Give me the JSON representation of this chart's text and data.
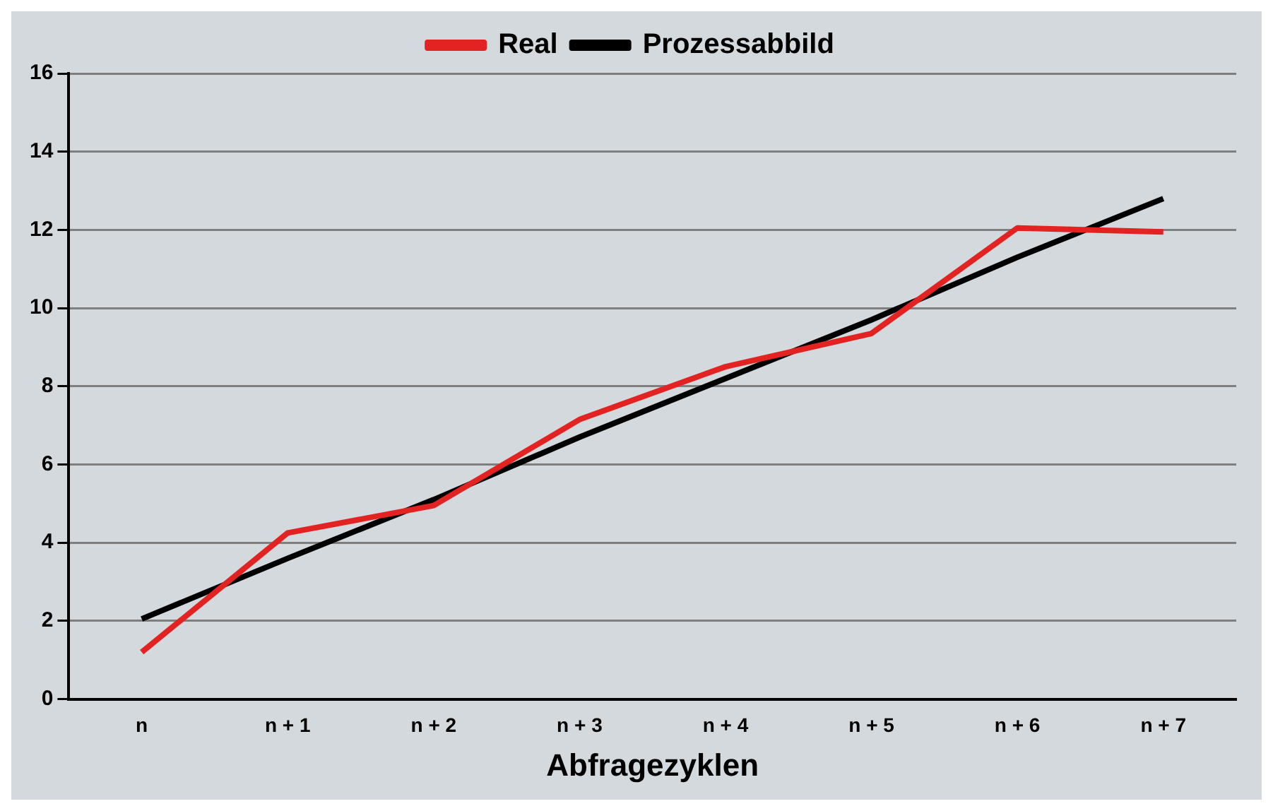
{
  "chart_data": {
    "type": "line",
    "xlabel": "Abfragezyklen",
    "categories": [
      "n",
      "n + 1",
      "n + 2",
      "n + 3",
      "n + 4",
      "n + 5",
      "n + 6",
      "n + 7"
    ],
    "series": [
      {
        "name": "Real",
        "color": "#e32322",
        "values": [
          1.2,
          4.25,
          4.95,
          7.15,
          8.5,
          9.35,
          12.05,
          11.95
        ]
      },
      {
        "name": "Prozessabbild",
        "color": "#000000",
        "values": [
          2.05,
          3.6,
          5.1,
          6.7,
          8.2,
          9.7,
          11.3,
          12.8
        ]
      }
    ],
    "ylim": [
      0,
      16
    ],
    "yticks": [
      0,
      2,
      4,
      6,
      8,
      10,
      12,
      14,
      16
    ],
    "grid": "y",
    "legend": "top",
    "marker": "none",
    "line_style": "solid"
  }
}
